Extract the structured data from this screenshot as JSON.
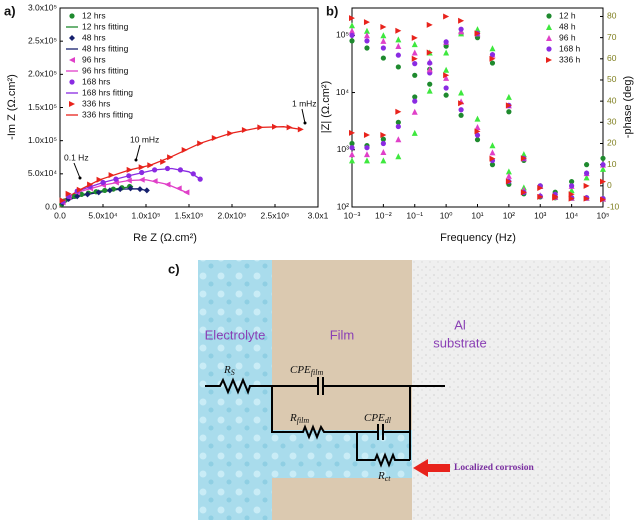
{
  "chart_data": [
    {
      "type": "scatter",
      "panel_label": "a)",
      "x_label": "Re Z (Ω.cm²)",
      "y_label": "-Im Z (Ω.cm²)",
      "xlim": [
        0,
        300000
      ],
      "ylim": [
        0,
        300000
      ],
      "xticks": [
        {
          "value": 0,
          "label": "0.0"
        },
        {
          "value": 50000,
          "label": "5.0x10⁴"
        },
        {
          "value": 100000,
          "label": "1.0x10⁵"
        },
        {
          "value": 150000,
          "label": "1.5x10⁵"
        },
        {
          "value": 200000,
          "label": "2.0x10⁵"
        },
        {
          "value": 250000,
          "label": "2.5x10⁵"
        },
        {
          "value": 300000,
          "label": "3.0x1"
        }
      ],
      "yticks": [
        {
          "value": 0,
          "label": "0.0"
        },
        {
          "value": 50000,
          "label": "5.0x10⁴"
        },
        {
          "value": 100000,
          "label": "1.0x10⁵"
        },
        {
          "value": 150000,
          "label": "1.5x10⁵"
        },
        {
          "value": 200000,
          "label": "2.0x10⁵"
        },
        {
          "value": 250000,
          "label": "2.5x10⁵"
        },
        {
          "value": 300000,
          "label": "3.0x10⁵"
        }
      ],
      "legend": "upper left",
      "annotations": [
        "0.1 Hz",
        "10 mHz",
        "1 mHz"
      ],
      "series": [
        {
          "name": "12 hrs",
          "color": "#1e8a2e",
          "marker": "circle",
          "x": [
            2000,
            5000,
            10000,
            17000,
            25000,
            33000,
            42000,
            52000,
            62000,
            72000,
            81000
          ],
          "values": [
            4000,
            9000,
            13000,
            16000,
            19000,
            21000,
            23000,
            25000,
            27000,
            29000,
            31000
          ]
        },
        {
          "name": "12 hrs fitting",
          "color": "#1e8a2e",
          "marker": "line",
          "x": [
            0,
            2000,
            10000,
            25000,
            42000,
            62000,
            85000
          ],
          "values": [
            0,
            5000,
            13000,
            18500,
            23000,
            27000,
            31000
          ]
        },
        {
          "name": "48 hrs",
          "color": "#16206e",
          "marker": "diamond",
          "x": [
            3000,
            10000,
            20000,
            32000,
            45000,
            58000,
            70000,
            82000,
            93000,
            101000
          ],
          "values": [
            6000,
            12000,
            16000,
            19000,
            22000,
            25000,
            27000,
            28000,
            27000,
            25000
          ]
        },
        {
          "name": "48 hrs fitting",
          "color": "#16206e",
          "marker": "line",
          "x": [
            0,
            3000,
            20000,
            45000,
            70000,
            90000,
            101000
          ],
          "values": [
            0,
            6000,
            16000,
            22000,
            27000,
            27500,
            25000
          ]
        },
        {
          "name": "96 hrs",
          "color": "#e040c8",
          "marker": "tri-left",
          "x": [
            3000,
            10000,
            20000,
            35000,
            50000,
            65000,
            80000,
            95000,
            110000,
            125000,
            138000,
            147000
          ],
          "values": [
            7000,
            15000,
            22000,
            28000,
            33000,
            37000,
            40000,
            41000,
            39000,
            34000,
            28000,
            22000
          ]
        },
        {
          "name": "96 hrs fitting",
          "color": "#e040c8",
          "marker": "line",
          "x": [
            0,
            3000,
            20000,
            50000,
            80000,
            100000,
            125000,
            147000
          ],
          "values": [
            0,
            7000,
            22000,
            33000,
            40000,
            41000,
            34000,
            22000
          ]
        },
        {
          "name": "168 hrs",
          "color": "#8a2be2",
          "marker": "circle",
          "x": [
            3000,
            10000,
            20000,
            35000,
            50000,
            65000,
            80000,
            95000,
            110000,
            125000,
            140000,
            155000,
            163000
          ],
          "values": [
            8000,
            16000,
            24000,
            31000,
            37000,
            42000,
            47000,
            52000,
            56000,
            58000,
            56000,
            50000,
            42000
          ]
        },
        {
          "name": "168 hrs fitting",
          "color": "#8a2be2",
          "marker": "line",
          "x": [
            0,
            3000,
            20000,
            50000,
            80000,
            110000,
            130000,
            150000,
            163000
          ],
          "values": [
            0,
            8000,
            24000,
            37000,
            47000,
            56000,
            58000,
            53000,
            42000
          ]
        },
        {
          "name": "336 hrs",
          "color": "#e8231c",
          "marker": "tri-right",
          "x": [
            3000,
            10000,
            23000,
            35000,
            46000,
            60000,
            81000,
            95000,
            105000,
            120000,
            128000,
            145000,
            163000,
            180000,
            198000,
            215000,
            233000,
            250000,
            267000,
            280000
          ],
          "values": [
            10000,
            20000,
            26000,
            34000,
            41000,
            48000,
            56000,
            60000,
            63000,
            68000,
            75000,
            86000,
            96000,
            104000,
            111000,
            116000,
            120000,
            121000,
            120000,
            117000
          ]
        },
        {
          "name": "336 hrs fitting",
          "color": "#e8231c",
          "marker": "line",
          "x": [
            0,
            3000,
            23000,
            46000,
            81000,
            105000,
            128000,
            163000,
            198000,
            233000,
            260000,
            280000
          ],
          "values": [
            0,
            10000,
            26000,
            41000,
            56000,
            63000,
            75000,
            96000,
            111000,
            120000,
            121000,
            117000
          ]
        }
      ]
    },
    {
      "type": "scatter",
      "panel_label": "b)",
      "x_label": "Frequency (Hz)",
      "y_label": "|Z| (Ω.cm²)",
      "y2_label": "-phase (deg)",
      "xscale": "log",
      "yscale": "log",
      "y2_color": "#7f7f1f",
      "xlim": [
        0.001,
        100000
      ],
      "ylim": [
        100,
        300000
      ],
      "y2lim": [
        -10,
        84
      ],
      "xticks": [
        {
          "value": 0.001,
          "label": "10⁻³"
        },
        {
          "value": 0.01,
          "label": "10⁻²"
        },
        {
          "value": 0.1,
          "label": "10⁻¹"
        },
        {
          "value": 1,
          "label": "10⁰"
        },
        {
          "value": 10,
          "label": "10¹"
        },
        {
          "value": 100,
          "label": "10²"
        },
        {
          "value": 1000,
          "label": "10³"
        },
        {
          "value": 10000,
          "label": "10⁴"
        },
        {
          "value": 100000,
          "label": "10⁵"
        }
      ],
      "yticks": [
        {
          "value": 100,
          "label": "10²"
        },
        {
          "value": 1000,
          "label": "10³"
        },
        {
          "value": 10000,
          "label": "10⁴"
        },
        {
          "value": 100000,
          "label": "10⁵"
        }
      ],
      "y2ticks": [
        -10,
        0,
        10,
        20,
        30,
        40,
        50,
        60,
        70,
        80
      ],
      "legend": "upper right",
      "x": [
        0.001,
        0.003,
        0.01,
        0.03,
        0.1,
        0.3,
        1,
        3,
        10,
        30,
        100,
        300,
        1000,
        3000,
        10000,
        30000,
        100000
      ],
      "series": [
        {
          "name": "12 h",
          "color": "#1e8a2e",
          "marker": "circle",
          "values": [
            80000,
            60000,
            40000,
            28000,
            20000,
            14000,
            9000,
            4000,
            1500,
            550,
            250,
            170,
            150,
            145,
            145,
            145,
            140
          ]
        },
        {
          "name": "48 h",
          "color": "#3ee83e",
          "marker": "tri-up",
          "values": [
            150000,
            120000,
            100000,
            85000,
            70000,
            50000,
            25000,
            10000,
            3500,
            1200,
            420,
            220,
            160,
            150,
            145,
            145,
            140
          ]
        },
        {
          "name": "96 h",
          "color": "#e040c8",
          "marker": "tri-up",
          "values": [
            120000,
            100000,
            80000,
            65000,
            50000,
            35000,
            18000,
            7000,
            2500,
            900,
            350,
            200,
            160,
            150,
            145,
            145,
            140
          ]
        },
        {
          "name": "168 h",
          "color": "#8a2be2",
          "marker": "circle",
          "values": [
            100000,
            80000,
            60000,
            45000,
            32000,
            22000,
            12000,
            5000,
            1800,
            650,
            280,
            180,
            155,
            150,
            145,
            145,
            140
          ]
        },
        {
          "name": "336 h",
          "color": "#e8231c",
          "marker": "tri-right",
          "values": [
            200000,
            170000,
            140000,
            120000,
            90000,
            50000,
            20000,
            6500,
            2100,
            700,
            280,
            180,
            150,
            145,
            140,
            140,
            135
          ]
        }
      ],
      "phase_series": [
        {
          "color": "#1e8a2e",
          "marker": "circle",
          "axis": "y2",
          "values": [
            20,
            19,
            22,
            30,
            42,
            55,
            66,
            72,
            70,
            58,
            35,
            12,
            0,
            -3,
            2,
            10,
            13
          ]
        },
        {
          "color": "#3ee83e",
          "marker": "tri-up",
          "axis": "y2",
          "values": [
            12,
            12,
            12,
            14,
            25,
            45,
            63,
            72,
            74,
            65,
            42,
            15,
            0,
            -4,
            -2,
            4,
            8
          ]
        },
        {
          "color": "#e040c8",
          "marker": "tri-up",
          "axis": "y2",
          "values": [
            15,
            15,
            16,
            22,
            35,
            55,
            68,
            73,
            72,
            62,
            38,
            13,
            0,
            -4,
            0,
            6,
            10
          ]
        },
        {
          "color": "#8a2be2",
          "marker": "circle",
          "axis": "y2",
          "values": [
            18,
            18,
            20,
            28,
            40,
            58,
            68,
            74,
            72,
            62,
            38,
            13,
            0,
            -4,
            0,
            6,
            10
          ]
        },
        {
          "color": "#e8231c",
          "marker": "tri-right",
          "axis": "y2",
          "values": [
            25,
            24,
            24,
            35,
            60,
            76,
            80,
            78,
            72,
            60,
            38,
            13,
            -1,
            -5,
            -4,
            0,
            2
          ]
        }
      ]
    }
  ],
  "diagram": {
    "panel_label": "c)",
    "electrolyte": "Electrolyte",
    "film": "Film",
    "substrate": [
      "Al",
      "substrate"
    ],
    "elements": [
      {
        "symbol": "R",
        "sub": "S"
      },
      {
        "symbol": "CPE",
        "sub": "film"
      },
      {
        "symbol": "R",
        "sub": "film"
      },
      {
        "symbol": "CPE",
        "sub": "dl"
      },
      {
        "symbol": "R",
        "sub": "ct"
      }
    ],
    "annotation": "Localized corrosion"
  }
}
